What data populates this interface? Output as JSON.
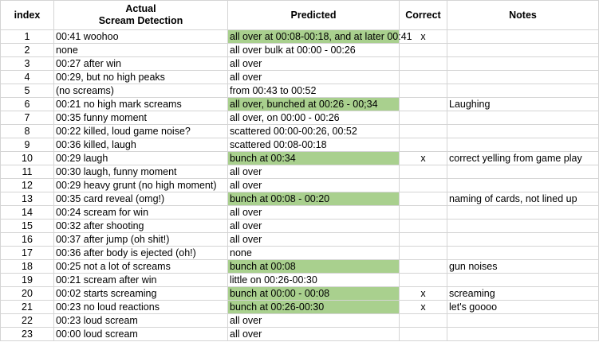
{
  "headers": {
    "index": "index",
    "actual_line1": "Actual",
    "actual_line2": "Scream Detection",
    "predicted": "Predicted",
    "correct": "Correct",
    "notes": "Notes"
  },
  "colors": {
    "highlight": "#a9d08e",
    "gridline": "#d4d4d4"
  },
  "rows": [
    {
      "index": "1",
      "actual": "00:41 woohoo",
      "predicted": "all over at 00:08-00:18, and at later 00:41",
      "highlight": true,
      "correct": "x",
      "notes": ""
    },
    {
      "index": "2",
      "actual": "none",
      "predicted": "all over bulk at 00:00 - 00:26",
      "highlight": false,
      "correct": "",
      "notes": ""
    },
    {
      "index": "3",
      "actual": "00:27 after win",
      "predicted": "all over",
      "highlight": false,
      "correct": "",
      "notes": ""
    },
    {
      "index": "4",
      "actual": "00:29, but no high peaks",
      "predicted": "all over",
      "highlight": false,
      "correct": "",
      "notes": ""
    },
    {
      "index": "5",
      "actual": "(no screams)",
      "predicted": "from 00:43 to 00:52",
      "highlight": false,
      "correct": "",
      "notes": ""
    },
    {
      "index": "6",
      "actual": "00:21 no high mark screams",
      "predicted": "all over, bunched at 00:26 - 00;34",
      "highlight": true,
      "correct": "",
      "notes": "Laughing"
    },
    {
      "index": "7",
      "actual": "00:35 funny moment",
      "predicted": "all over, on 00:00 - 00:26",
      "highlight": false,
      "correct": "",
      "notes": ""
    },
    {
      "index": "8",
      "actual": "00:22 killed, loud game noise?",
      "predicted": "scattered 00:00-00:26, 00:52",
      "highlight": false,
      "correct": "",
      "notes": ""
    },
    {
      "index": "9",
      "actual": "00:36 killed, laugh",
      "predicted": "scattered 00:08-00:18",
      "highlight": false,
      "correct": "",
      "notes": ""
    },
    {
      "index": "10",
      "actual": "00:29 laugh",
      "predicted": "bunch at 00:34",
      "highlight": true,
      "correct": "x",
      "notes": "correct yelling from game play"
    },
    {
      "index": "11",
      "actual": "00:30 laugh, funny moment",
      "predicted": "all over",
      "highlight": false,
      "correct": "",
      "notes": ""
    },
    {
      "index": "12",
      "actual": "00:29 heavy grunt (no high moment)",
      "predicted": "all over",
      "highlight": false,
      "correct": "",
      "notes": ""
    },
    {
      "index": "13",
      "actual": "00:35 card reveal (omg!)",
      "predicted": "bunch at 00:08 - 00:20",
      "highlight": true,
      "correct": "",
      "notes": "naming of cards, not lined up"
    },
    {
      "index": "14",
      "actual": "00:24 scream for win",
      "predicted": "all over",
      "highlight": false,
      "correct": "",
      "notes": ""
    },
    {
      "index": "15",
      "actual": "00:32 after shooting",
      "predicted": "all over",
      "highlight": false,
      "correct": "",
      "notes": ""
    },
    {
      "index": "16",
      "actual": "00:37 after jump (oh shit!)",
      "predicted": "all over",
      "highlight": false,
      "correct": "",
      "notes": ""
    },
    {
      "index": "17",
      "actual": "00:36 after body is ejected (oh!)",
      "predicted": "none",
      "highlight": false,
      "correct": "",
      "notes": ""
    },
    {
      "index": "18",
      "actual": "00:25 not a lot of screams",
      "predicted": "bunch at 00:08",
      "highlight": true,
      "correct": "",
      "notes": "gun noises"
    },
    {
      "index": "19",
      "actual": "00:21 scream after win",
      "predicted": "little on 00:26-00:30",
      "highlight": false,
      "correct": "",
      "notes": ""
    },
    {
      "index": "20",
      "actual": "00:02 starts screaming",
      "predicted": "bunch at 00:00 - 00:08",
      "highlight": true,
      "correct": "x",
      "notes": "screaming"
    },
    {
      "index": "21",
      "actual": "00:23 no loud reactions",
      "predicted": "bunch at 00:26-00:30",
      "highlight": true,
      "correct": "x",
      "notes": "let's goooo"
    },
    {
      "index": "22",
      "actual": "00:23 loud scream",
      "predicted": "all over",
      "highlight": false,
      "correct": "",
      "notes": ""
    },
    {
      "index": "23",
      "actual": "00:00 loud scream",
      "predicted": "all over",
      "highlight": false,
      "correct": "",
      "notes": ""
    }
  ]
}
